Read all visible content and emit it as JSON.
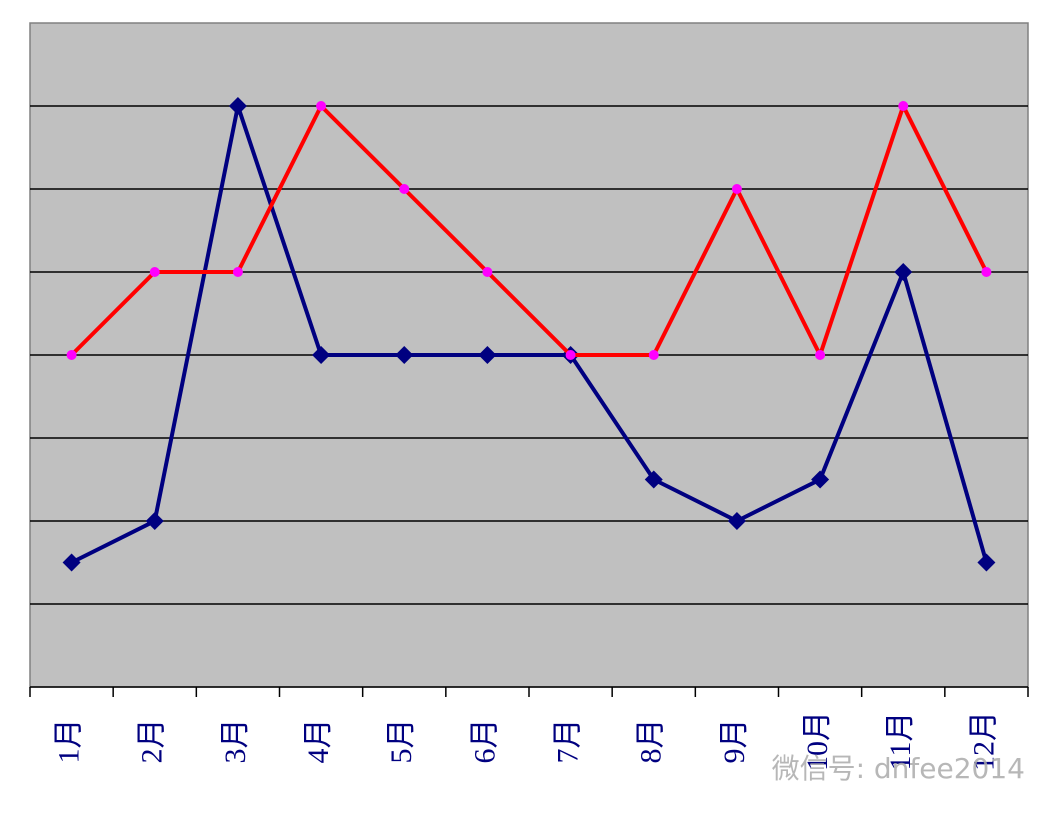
{
  "chart_data": {
    "type": "line",
    "categories": [
      "1月",
      "2月",
      "3月",
      "4月",
      "5月",
      "6月",
      "7月",
      "8月",
      "9月",
      "10月",
      "11月",
      "12月"
    ],
    "series": [
      {
        "color": "#000080",
        "marker": "diamond",
        "values": [
          1.5,
          2,
          7,
          4,
          4,
          4,
          4,
          2.5,
          2,
          2.5,
          5,
          1.5
        ]
      },
      {
        "color": "#ff0000",
        "marker": "circle",
        "marker_color": "#ff00ff",
        "values": [
          4,
          5,
          5,
          7,
          6,
          5,
          4,
          4,
          6,
          4,
          7,
          5
        ]
      }
    ],
    "ylim": [
      0,
      8
    ],
    "yticks": [
      1,
      2,
      3,
      4,
      5,
      6,
      7
    ],
    "grid": true,
    "watermark": "微信号: dnfee2014"
  }
}
